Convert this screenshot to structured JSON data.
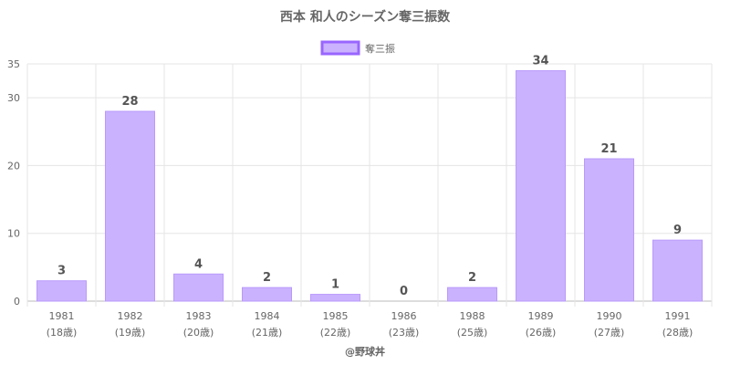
{
  "chart_data": {
    "type": "bar",
    "title": "西本 和人のシーズン奪三振数",
    "legend": {
      "label": "奪三振",
      "position": "top"
    },
    "categories": [
      "1981",
      "1982",
      "1983",
      "1984",
      "1985",
      "1986",
      "1988",
      "1989",
      "1990",
      "1991"
    ],
    "category_sublabels": [
      "(18歳)",
      "(19歳)",
      "(20歳)",
      "(21歳)",
      "(22歳)",
      "(23歳)",
      "(25歳)",
      "(26歳)",
      "(27歳)",
      "(28歳)"
    ],
    "series": [
      {
        "name": "奪三振",
        "values": [
          3,
          28,
          4,
          2,
          1,
          0,
          2,
          34,
          21,
          9
        ]
      }
    ],
    "ylim": [
      0,
      35
    ],
    "yticks": [
      0,
      10,
      20,
      30,
      35
    ],
    "grid": true,
    "colors": {
      "bar_fill": "#cbb2fe",
      "bar_stroke": "#b99afc",
      "legend_stroke": "#9966ff"
    }
  },
  "footer": {
    "credit": "@野球丼"
  }
}
